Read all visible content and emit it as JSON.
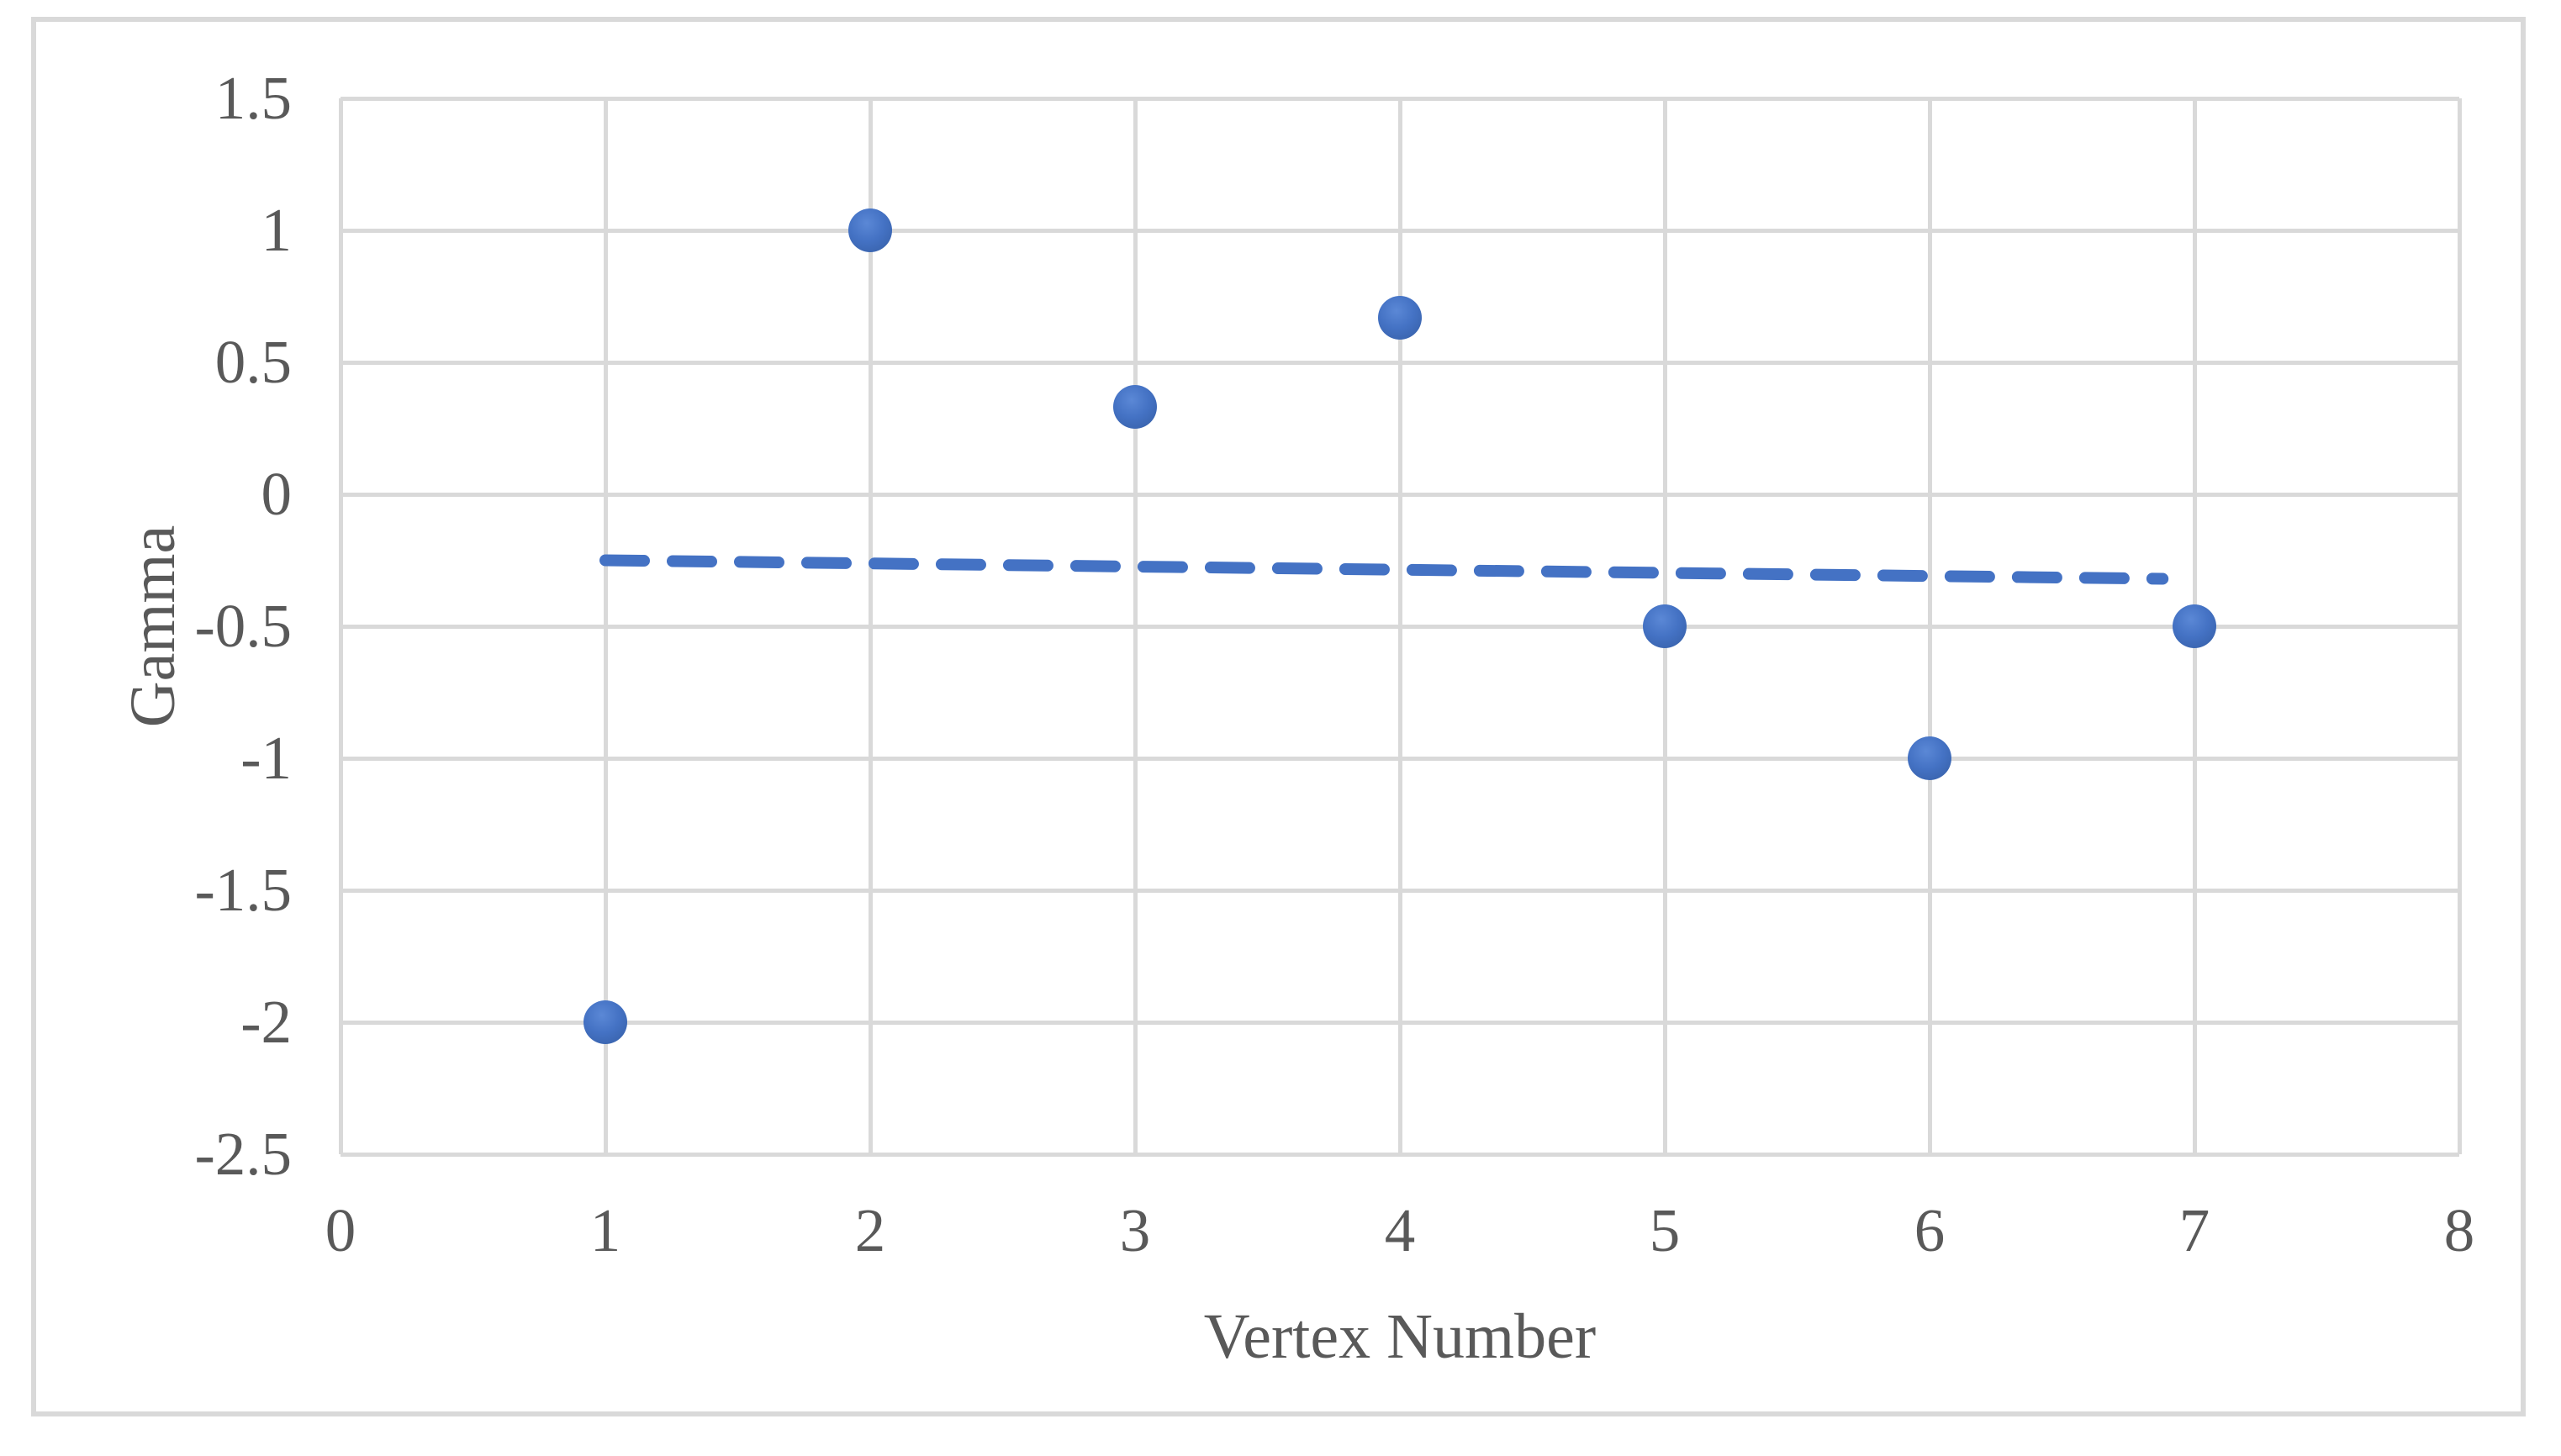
{
  "chart_data": {
    "type": "scatter",
    "title": "",
    "xlabel": "Vertex Number",
    "ylabel": "Gamma",
    "xlim": [
      0,
      8
    ],
    "ylim": [
      -2.5,
      1.5
    ],
    "grid": true,
    "legend_position": "none",
    "xticks": [
      {
        "v": 0,
        "label": "0"
      },
      {
        "v": 1,
        "label": "1"
      },
      {
        "v": 2,
        "label": "2"
      },
      {
        "v": 3,
        "label": "3"
      },
      {
        "v": 4,
        "label": "4"
      },
      {
        "v": 5,
        "label": "5"
      },
      {
        "v": 6,
        "label": "6"
      },
      {
        "v": 7,
        "label": "7"
      },
      {
        "v": 8,
        "label": "8"
      }
    ],
    "yticks": [
      {
        "v": 1.5,
        "label": "1.5"
      },
      {
        "v": 1,
        "label": "1"
      },
      {
        "v": 0.5,
        "label": "0.5"
      },
      {
        "v": 0,
        "label": "0"
      },
      {
        "v": -0.5,
        "label": "-0.5"
      },
      {
        "v": -1,
        "label": "-1"
      },
      {
        "v": -1.5,
        "label": "-1.5"
      },
      {
        "v": -2,
        "label": "-2"
      },
      {
        "v": -2.5,
        "label": "-2.5"
      }
    ],
    "series": [
      {
        "name": "Gamma",
        "marker": "circle",
        "points": [
          {
            "x": 1,
            "y": -2
          },
          {
            "x": 2,
            "y": 1
          },
          {
            "x": 3,
            "y": 0.33
          },
          {
            "x": 4,
            "y": 0.67
          },
          {
            "x": 5,
            "y": -0.5
          },
          {
            "x": 6,
            "y": -1
          },
          {
            "x": 7,
            "y": -0.5
          }
        ]
      }
    ],
    "trendline": {
      "style": "dashed",
      "x1": 1,
      "y1": -0.25,
      "x2": 6.88,
      "y2": -0.32
    },
    "colors": {
      "marker": "#4472C4",
      "trendline": "#4472C4",
      "gridline": "#D9D9D9",
      "chart_border": "#D9D9D9",
      "text": "#595959",
      "background": "#FFFFFF"
    }
  }
}
